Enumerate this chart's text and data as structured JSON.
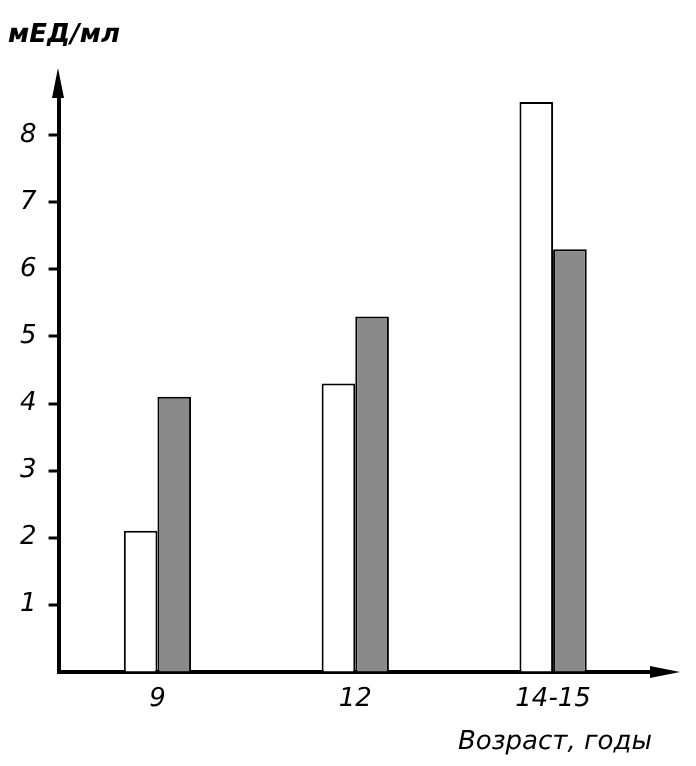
{
  "chart_data": {
    "type": "bar",
    "xlabel": "Возраст, годы",
    "ylabel": "мЕД/мл",
    "categories": [
      "9",
      "12",
      "14-15"
    ],
    "series": [
      {
        "color": "#ffffff",
        "values": [
          2.1,
          4.3,
          8.5
        ]
      },
      {
        "color": "#8a8a8a",
        "values": [
          4.1,
          5.3,
          6.3
        ]
      }
    ],
    "ylim": [
      0,
      8.6
    ],
    "yticks": [
      1,
      2,
      3,
      4,
      5,
      6,
      7,
      8
    ],
    "grid": false,
    "legend": false
  }
}
